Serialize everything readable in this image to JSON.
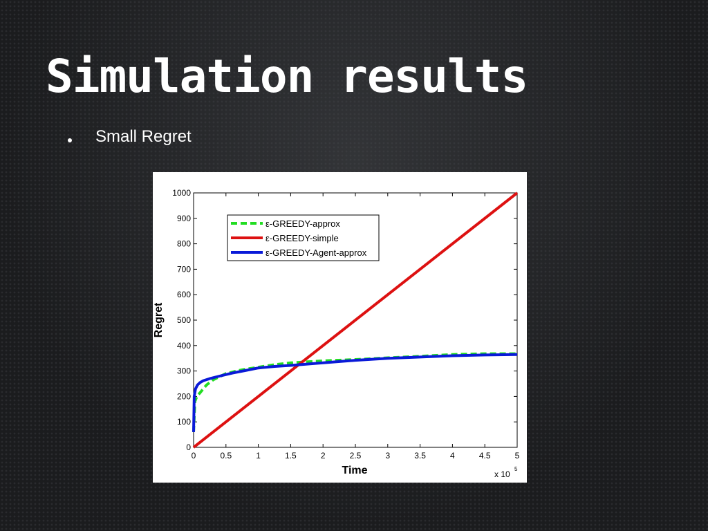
{
  "slide": {
    "title": "Simulation results",
    "bullet": "Small Regret"
  },
  "chart_data": {
    "type": "line",
    "title": "",
    "xlabel": "Time",
    "ylabel": "Regret",
    "x_multiplier_label": "x 10",
    "x_multiplier_exponent": "5",
    "xlim": [
      0,
      5
    ],
    "ylim": [
      0,
      1000
    ],
    "x_ticks": [
      "0",
      "0.5",
      "1",
      "1.5",
      "2",
      "2.5",
      "3",
      "3.5",
      "4",
      "4.5",
      "5"
    ],
    "y_ticks": [
      "0",
      "100",
      "200",
      "300",
      "400",
      "500",
      "600",
      "700",
      "800",
      "900",
      "1000"
    ],
    "grid": false,
    "legend_position": "top-left",
    "series": [
      {
        "name": "ε-GREEDY-approx",
        "color": "#22dd22",
        "style": "dashed",
        "x": [
          0,
          0.02,
          0.05,
          0.1,
          0.2,
          0.3,
          0.5,
          0.75,
          1,
          1.25,
          1.5,
          2,
          2.5,
          3,
          3.5,
          4,
          4.5,
          5
        ],
        "y": [
          60,
          180,
          200,
          215,
          245,
          265,
          290,
          305,
          315,
          325,
          332,
          340,
          345,
          352,
          358,
          365,
          368,
          368
        ]
      },
      {
        "name": "ε-GREEDY-simple",
        "color": "#dd1111",
        "style": "solid",
        "x": [
          0,
          5
        ],
        "y": [
          0,
          1000
        ]
      },
      {
        "name": "ε-GREEDY-Agent-approx",
        "color": "#0a1ad8",
        "style": "solid",
        "x": [
          0,
          0.01,
          0.03,
          0.06,
          0.1,
          0.15,
          0.25,
          0.4,
          0.6,
          0.8,
          1,
          1.25,
          1.5,
          2,
          2.5,
          3,
          3.5,
          4,
          4.5,
          5
        ],
        "y": [
          60,
          200,
          230,
          245,
          255,
          262,
          270,
          280,
          292,
          302,
          312,
          318,
          322,
          332,
          342,
          350,
          355,
          360,
          363,
          365
        ]
      }
    ]
  }
}
